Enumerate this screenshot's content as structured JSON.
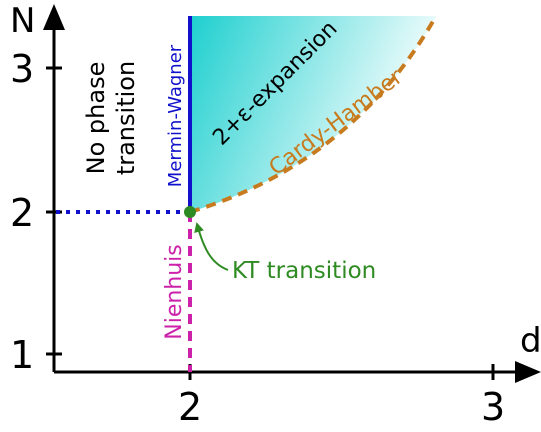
{
  "axes": {
    "x_label": "d",
    "y_label": "N",
    "x_ticks": [
      "2",
      "3"
    ],
    "y_ticks": [
      "1",
      "2",
      "3"
    ]
  },
  "regions": {
    "no_phase_line1": "No phase",
    "no_phase_line2": "transition"
  },
  "lines": {
    "mermin_wagner": "Mermin-Wagner",
    "nienhuis": "Nienhuis",
    "expansion": "2+ε-expansion",
    "cardy_hamber": "Cardy-Hamber"
  },
  "point": {
    "label": "KT transition",
    "d": 2,
    "N": 2
  },
  "colors": {
    "axis": "#000000",
    "mermin_wagner": "#1111cc",
    "nienhuis": "#cc22aa",
    "cardy_hamber": "#c87a1e",
    "kt": "#2e8b22",
    "dotted_n2": "#1111cc",
    "gradient_start": "#1ecfcf",
    "gradient_end": "#ffffff"
  }
}
